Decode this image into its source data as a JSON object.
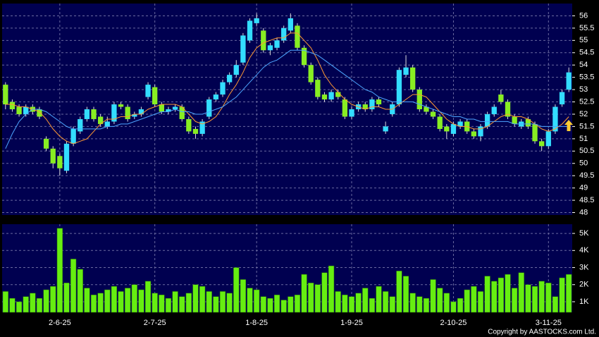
{
  "chart_data": [
    {
      "type": "candlestick",
      "up_color": "#33ddff",
      "down_color": "#88ee22",
      "ylim": [
        47.9,
        56.5
      ],
      "yticks": [
        48,
        48.5,
        49,
        49.5,
        50,
        50.5,
        51,
        51.5,
        52,
        52.5,
        53,
        53.5,
        54,
        54.5,
        55,
        55.5,
        56
      ],
      "grid": true,
      "open": [
        53.2,
        52.5,
        52.3,
        52.0,
        52.3,
        52.2,
        51.0,
        50.6,
        50.3,
        49.7,
        50.8,
        51.3,
        51.8,
        52.2,
        51.9,
        51.5,
        51.7,
        52.4,
        52.3,
        51.9,
        52.0,
        52.7,
        53.1,
        52.4,
        52.1,
        52.2,
        52.3,
        51.8,
        51.4,
        51.2,
        51.9,
        52.6,
        52.8,
        53.3,
        53.6,
        54.1,
        55.0,
        55.7,
        55.4,
        54.6,
        54.7,
        55.0,
        55.4,
        55.6,
        54.7,
        54.0,
        53.4,
        52.8,
        52.6,
        52.9,
        52.6,
        51.9,
        52.2,
        52.4,
        52.2,
        52.6,
        51.3,
        52.0,
        52.4,
        53.6,
        53.9,
        53.0,
        52.3,
        52.1,
        51.9,
        51.5,
        51.2,
        51.5,
        51.7,
        51.3,
        51.1,
        51.5,
        52.0,
        52.8,
        52.5,
        51.9,
        51.5,
        51.8,
        51.6,
        50.9,
        50.7,
        51.3,
        52.4,
        53.0
      ],
      "high": [
        53.3,
        52.6,
        52.4,
        52.4,
        52.4,
        52.3,
        51.1,
        50.7,
        50.4,
        50.9,
        51.5,
        51.9,
        52.3,
        52.3,
        52.0,
        51.9,
        52.5,
        52.5,
        52.4,
        52.1,
        52.3,
        53.3,
        53.2,
        52.5,
        52.3,
        52.4,
        52.4,
        51.9,
        51.5,
        51.8,
        52.7,
        52.9,
        53.4,
        53.7,
        54.2,
        55.3,
        55.9,
        56.1,
        55.5,
        54.9,
        55.1,
        55.6,
        56.1,
        55.7,
        54.8,
        54.1,
        53.5,
        52.9,
        53.0,
        53.0,
        52.7,
        52.3,
        52.5,
        52.5,
        52.7,
        52.7,
        51.7,
        52.5,
        53.9,
        54.4,
        54.0,
        53.1,
        52.4,
        52.2,
        52.0,
        51.6,
        51.7,
        51.8,
        51.8,
        51.4,
        51.6,
        52.1,
        52.4,
        53.0,
        52.6,
        52.0,
        51.8,
        51.9,
        51.7,
        51.0,
        51.4,
        52.4,
        53.0,
        53.9
      ],
      "low": [
        52.2,
        52.1,
        51.9,
        51.9,
        52.0,
        51.8,
        50.5,
        49.8,
        49.5,
        49.6,
        50.7,
        51.2,
        51.7,
        51.7,
        51.5,
        51.4,
        51.6,
        52.2,
        51.7,
        51.8,
        51.9,
        52.6,
        52.3,
        52.0,
        52.0,
        52.1,
        51.7,
        51.2,
        51.0,
        51.1,
        51.8,
        52.5,
        52.7,
        53.2,
        53.5,
        54.0,
        54.9,
        55.6,
        54.5,
        54.4,
        54.6,
        54.9,
        55.3,
        54.6,
        53.9,
        53.2,
        52.6,
        52.5,
        52.5,
        52.6,
        51.8,
        51.8,
        52.1,
        52.1,
        52.1,
        52.3,
        51.2,
        51.9,
        52.3,
        53.5,
        52.9,
        52.1,
        52.0,
        51.8,
        51.3,
        51.0,
        51.1,
        51.4,
        51.2,
        51.0,
        50.9,
        51.4,
        51.9,
        52.4,
        51.8,
        51.5,
        51.4,
        51.4,
        50.8,
        50.5,
        50.6,
        51.2,
        52.3,
        52.9
      ],
      "close": [
        52.4,
        52.2,
        52.0,
        52.3,
        52.1,
        51.9,
        50.6,
        50.0,
        49.8,
        50.8,
        51.4,
        51.8,
        52.2,
        51.8,
        51.6,
        51.7,
        52.4,
        52.3,
        51.8,
        52.0,
        52.2,
        53.2,
        52.4,
        52.1,
        52.2,
        52.3,
        51.8,
        51.3,
        51.2,
        51.7,
        52.6,
        52.8,
        53.3,
        53.6,
        54.0,
        55.2,
        55.8,
        55.9,
        54.6,
        54.8,
        55.0,
        55.5,
        55.9,
        54.7,
        54.0,
        53.3,
        52.7,
        52.6,
        52.9,
        52.7,
        51.9,
        52.2,
        52.4,
        52.2,
        52.6,
        52.4,
        51.5,
        52.4,
        53.8,
        53.9,
        53.0,
        52.2,
        52.1,
        51.9,
        51.4,
        51.3,
        51.6,
        51.7,
        51.3,
        51.1,
        51.5,
        52.0,
        52.3,
        52.5,
        51.9,
        51.6,
        51.7,
        51.5,
        50.9,
        50.7,
        51.3,
        52.3,
        52.9,
        53.7
      ],
      "series": [
        {
          "color": "#ff9933",
          "values": [
            52.4,
            52.4,
            52.3,
            52.3,
            52.2,
            52.1,
            51.8,
            51.4,
            51.1,
            50.9,
            50.8,
            50.9,
            51.0,
            51.3,
            51.6,
            51.8,
            51.8,
            51.9,
            51.9,
            52.0,
            52.0,
            52.2,
            52.3,
            52.4,
            52.4,
            52.4,
            52.3,
            52.0,
            51.7,
            51.6,
            51.7,
            51.9,
            52.3,
            52.8,
            53.2,
            53.7,
            54.3,
            54.7,
            54.9,
            55.0,
            55.1,
            55.1,
            55.3,
            55.3,
            55.0,
            54.7,
            54.2,
            53.6,
            53.2,
            52.9,
            52.6,
            52.4,
            52.3,
            52.2,
            52.3,
            52.3,
            52.2,
            52.2,
            52.4,
            52.6,
            52.8,
            52.8,
            52.7,
            52.4,
            52.1,
            51.8,
            51.6,
            51.5,
            51.5,
            51.4,
            51.4,
            51.5,
            51.7,
            51.9,
            52.0,
            51.9,
            51.9,
            51.8,
            51.6,
            51.4,
            51.3,
            51.4,
            51.6,
            51.9
          ]
        },
        {
          "color": "#4da6ff",
          "values": [
            50.6,
            51.2,
            51.7,
            52.0,
            52.2,
            52.2,
            52.1,
            51.9,
            51.7,
            51.5,
            51.4,
            51.4,
            51.4,
            51.4,
            51.4,
            51.5,
            51.5,
            51.6,
            51.6,
            51.7,
            51.8,
            51.9,
            52.0,
            52.1,
            52.1,
            52.2,
            52.1,
            52.1,
            52.0,
            52.0,
            52.1,
            52.2,
            52.3,
            52.5,
            52.7,
            53.0,
            53.3,
            53.6,
            53.9,
            54.1,
            54.2,
            54.4,
            54.6,
            54.6,
            54.6,
            54.5,
            54.4,
            54.2,
            54.0,
            53.8,
            53.6,
            53.4,
            53.2,
            53.0,
            52.9,
            52.7,
            52.6,
            52.5,
            52.5,
            52.5,
            52.5,
            52.4,
            52.3,
            52.2,
            52.1,
            52.0,
            51.9,
            51.9,
            51.8,
            51.8,
            51.7,
            51.7,
            51.7,
            51.7,
            51.7,
            51.6,
            51.6,
            51.6,
            51.6,
            51.5,
            51.5,
            51.5,
            51.5,
            51.5
          ]
        }
      ]
    },
    {
      "type": "bar",
      "color": "#66ee11",
      "ylim": [
        380,
        5540
      ],
      "yticks": [
        {
          "value": 1000,
          "label": "1K"
        },
        {
          "value": 2000,
          "label": "2K"
        },
        {
          "value": 3000,
          "label": "3K"
        },
        {
          "value": 4000,
          "label": "4K"
        },
        {
          "value": 5000,
          "label": "5K"
        }
      ],
      "xticks": [
        {
          "value": 8,
          "label": "2-6-25"
        },
        {
          "value": 22,
          "label": "2-7-25"
        },
        {
          "value": 37,
          "label": "1-8-25"
        },
        {
          "value": 51,
          "label": "1-9-25"
        },
        {
          "value": 66,
          "label": "2-10-25"
        },
        {
          "value": 80,
          "label": "3-11-25"
        }
      ],
      "grid": true,
      "values": [
        1600,
        1200,
        1000,
        1300,
        1500,
        1200,
        1700,
        1900,
        5300,
        2100,
        3500,
        2900,
        1800,
        1400,
        1500,
        1700,
        1900,
        1600,
        1800,
        2000,
        1700,
        2200,
        1500,
        1400,
        1200,
        1600,
        1300,
        1500,
        2000,
        1900,
        1600,
        1300,
        1600,
        1500,
        3000,
        2300,
        1800,
        1700,
        1300,
        1200,
        1400,
        1100,
        1300,
        1400,
        2600,
        2100,
        2000,
        2700,
        3100,
        1600,
        1400,
        1300,
        1500,
        1800,
        1200,
        1900,
        1600,
        1300,
        2800,
        2500,
        1500,
        1300,
        1200,
        2300,
        1800,
        1500,
        1000,
        1200,
        1700,
        1900,
        1600,
        2500,
        2200,
        2400,
        2600,
        1800,
        2700,
        2000,
        1900,
        2200,
        2100,
        1300,
        2400,
        2600
      ]
    },
    {
      "type": "text",
      "copyright": "Copyright by AASTOCKS.com Ltd."
    }
  ]
}
